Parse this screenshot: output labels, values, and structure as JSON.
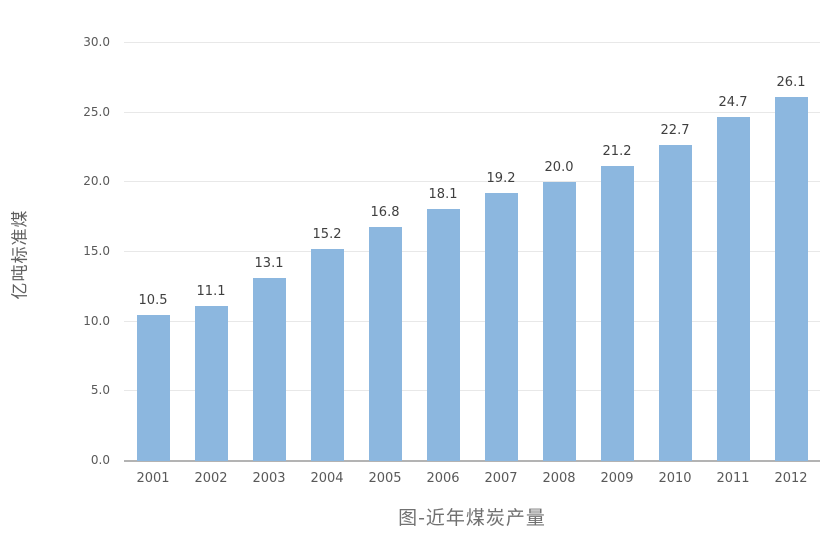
{
  "chart_data": {
    "type": "bar",
    "title": "图-近年煤炭产量",
    "xlabel": "",
    "ylabel": "亿吨标准煤",
    "categories": [
      "2001",
      "2002",
      "2003",
      "2004",
      "2005",
      "2006",
      "2007",
      "2008",
      "2009",
      "2010",
      "2011",
      "2012"
    ],
    "values": [
      10.5,
      11.1,
      13.1,
      15.2,
      16.8,
      18.1,
      19.2,
      20.0,
      21.2,
      22.7,
      24.7,
      26.1
    ],
    "value_labels": [
      "10.5",
      "11.1",
      "13.1",
      "15.2",
      "16.8",
      "18.1",
      "19.2",
      "20.0",
      "21.2",
      "22.7",
      "24.7",
      "26.1"
    ],
    "ylim": [
      0,
      30
    ],
    "y_tick_step": 5,
    "y_tick_labels": [
      "0.0",
      "5.0",
      "10.0",
      "15.0",
      "20.0",
      "25.0",
      "30.0"
    ],
    "grid": "horizontal",
    "legend": "none",
    "bar_color": "#8cb7df",
    "gridline_color": "#e8e8e8",
    "baseline_color": "#b3b3b3",
    "label_color": "#3f3f3f",
    "tick_color": "#595959",
    "title_color": "#717171"
  }
}
